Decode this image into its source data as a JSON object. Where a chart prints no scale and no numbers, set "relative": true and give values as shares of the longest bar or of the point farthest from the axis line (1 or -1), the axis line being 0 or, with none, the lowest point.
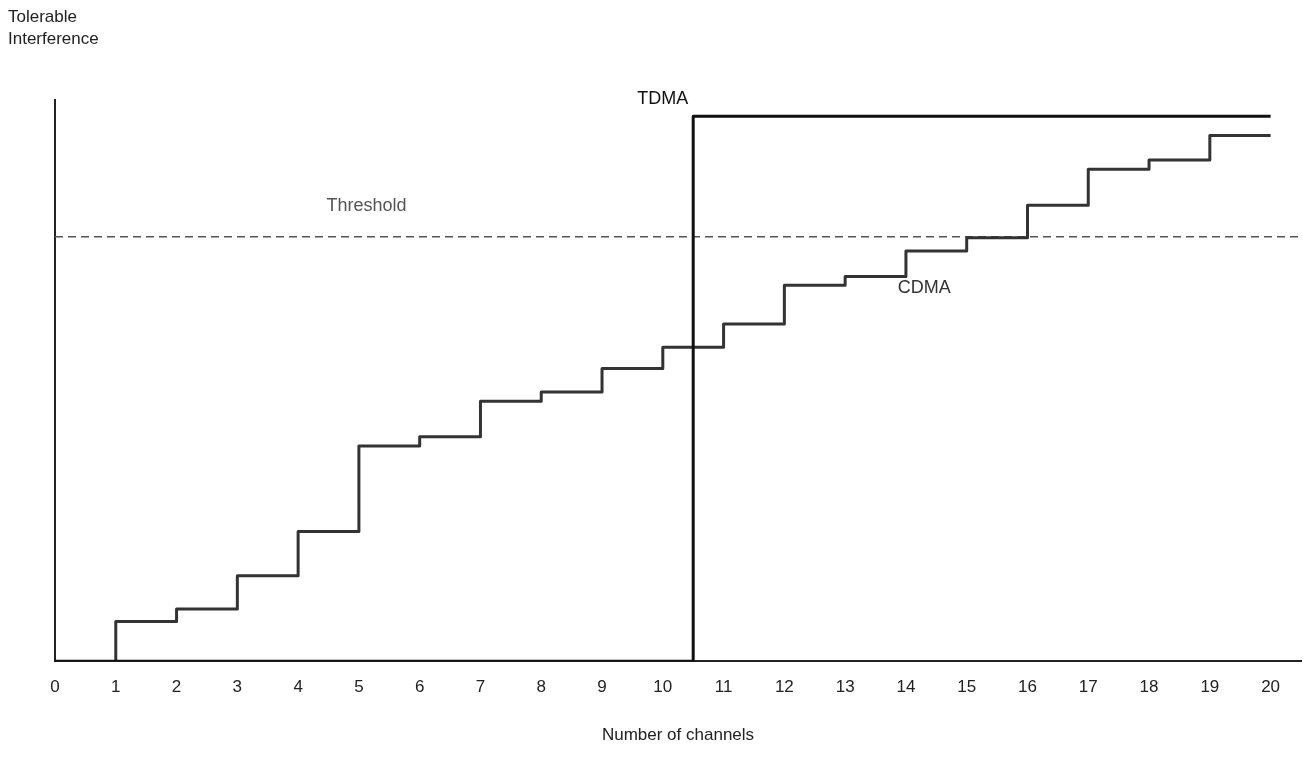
{
  "chart_data": {
    "type": "step",
    "relative": true,
    "xlabel": "Number of channels",
    "ylabel": "Tolerable Interference",
    "xlim": [
      0,
      20.5
    ],
    "xticks": [
      0,
      1,
      2,
      3,
      4,
      5,
      6,
      7,
      8,
      9,
      10,
      11,
      12,
      13,
      14,
      15,
      16,
      17,
      18,
      19,
      20
    ],
    "tick_labels": "x",
    "legend": false,
    "grid": false,
    "line_style": "solid",
    "marker": "none",
    "series": [
      {
        "name": "TDMA",
        "color": "#111111",
        "x": [
          0,
          10.5,
          20
        ],
        "values": [
          0,
          1,
          1
        ]
      },
      {
        "name": "CDMA",
        "color": "#333333",
        "x": [
          1,
          1,
          2,
          3,
          4,
          5,
          6,
          7,
          8,
          9,
          10,
          11,
          12,
          13,
          14,
          15,
          16,
          17,
          18,
          19,
          20
        ],
        "values": [
          0,
          0.073,
          0.096,
          0.157,
          0.238,
          0.395,
          0.412,
          0.477,
          0.494,
          0.537,
          0.576,
          0.619,
          0.69,
          0.706,
          0.753,
          0.777,
          0.837,
          0.903,
          0.92,
          0.965,
          0.965
        ]
      }
    ],
    "ref_lines": [
      {
        "axis": "y",
        "value": 0.779,
        "label": "Threshold",
        "color": "#555555",
        "line_style": "dashed"
      }
    ]
  }
}
